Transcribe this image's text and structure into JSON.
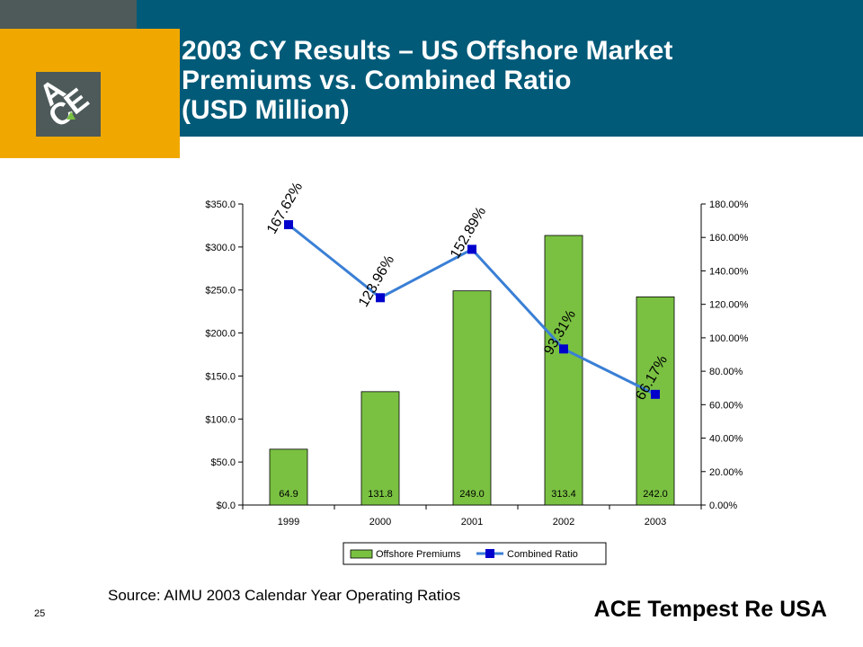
{
  "slide": {
    "title_lines": [
      "2003 CY Results – US Offshore Market",
      "Premiums vs. Combined Ratio",
      "(USD Million)"
    ],
    "source": "Source: AIMU 2003 Calendar Year  Operating Ratios",
    "page_number": "25",
    "brand": "ACE Tempest Re USA",
    "logo_letters": [
      "A",
      "C",
      "E"
    ]
  },
  "colors": {
    "teal": "#005a78",
    "gold": "#f0a800",
    "slate": "#4d5a59",
    "bar": "#7ac142",
    "line": "#3a7fd5",
    "marker": "#0000cc"
  },
  "chart_data": {
    "type": "bar",
    "categories": [
      "1999",
      "2000",
      "2001",
      "2002",
      "2003"
    ],
    "series": [
      {
        "name": "Offshore Premiums",
        "type": "bar",
        "axis": "left",
        "values": [
          64.9,
          131.8,
          249.0,
          313.4,
          242.0
        ],
        "labels": [
          "64.9",
          "131.8",
          "249.0",
          "313.4",
          "242.0"
        ]
      },
      {
        "name": "Combined Ratio",
        "type": "line",
        "axis": "right",
        "values": [
          167.62,
          123.96,
          152.89,
          93.31,
          66.17
        ],
        "labels": [
          "167.62%",
          "123.96%",
          "152.89%",
          "93.31%",
          "66.17%"
        ]
      }
    ],
    "y_left": {
      "ylim": [
        0,
        350
      ],
      "ticks": [
        "$0.0",
        "$50.0",
        "$100.0",
        "$150.0",
        "$200.0",
        "$250.0",
        "$300.0",
        "$350.0"
      ]
    },
    "y_right": {
      "ylim": [
        0,
        180
      ],
      "ticks": [
        "0.00%",
        "20.00%",
        "40.00%",
        "60.00%",
        "80.00%",
        "100.00%",
        "120.00%",
        "140.00%",
        "160.00%",
        "180.00%"
      ]
    },
    "grid": false,
    "legend": "bottom"
  }
}
